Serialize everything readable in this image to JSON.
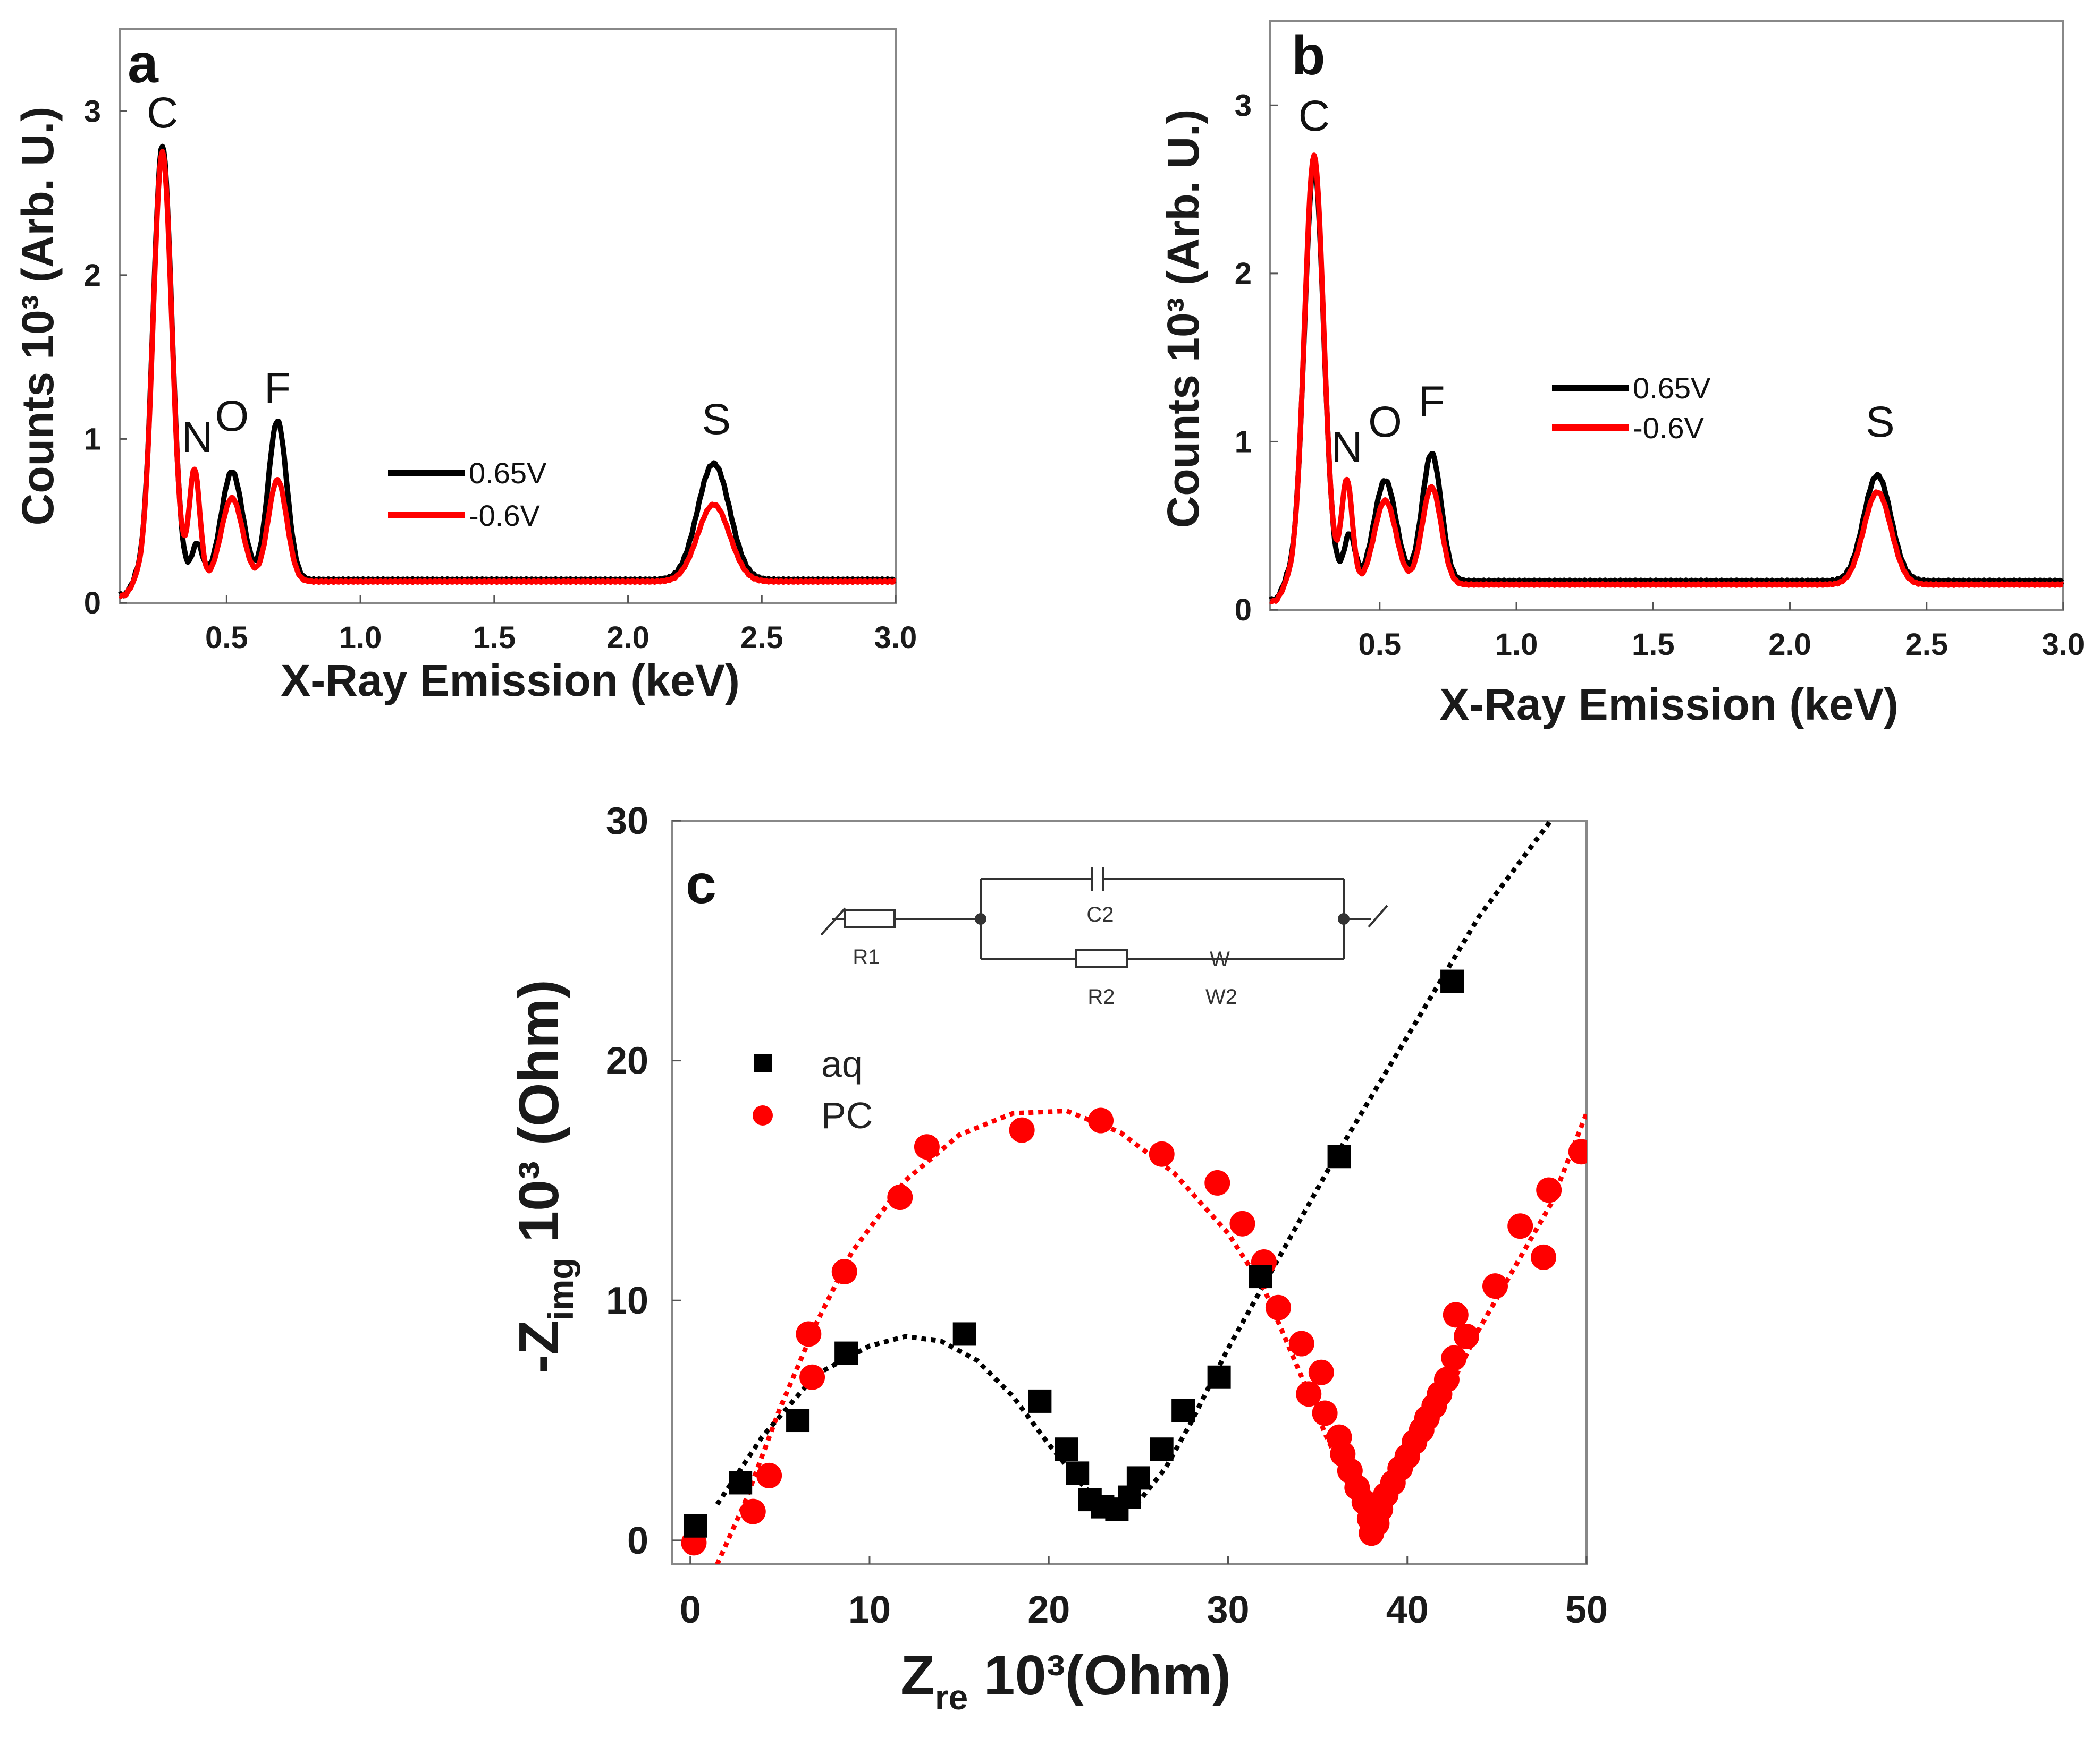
{
  "chart_data": [
    {
      "panel": "a",
      "type": "line",
      "xlabel": "X-Ray Emission (keV)",
      "ylabel": "Counts 10³ (Arb. U.)",
      "xlim": [
        0.1,
        3.0
      ],
      "ylim": [
        0,
        3.5
      ],
      "xticks": [
        "0.5",
        "1.0",
        "1.5",
        "2.0",
        "2.5",
        "3.0"
      ],
      "yticks": [
        "0",
        "1",
        "2",
        "3"
      ],
      "peak_labels": [
        {
          "text": "C",
          "x": 0.26,
          "y": 2.9
        },
        {
          "text": "N",
          "x": 0.39,
          "y": 0.92
        },
        {
          "text": "O",
          "x": 0.52,
          "y": 1.05
        },
        {
          "text": "F",
          "x": 0.69,
          "y": 1.22
        },
        {
          "text": "S",
          "x": 2.33,
          "y": 1.03
        }
      ],
      "legend_position": "center",
      "series": [
        {
          "name": "0.65V",
          "color": "#000000",
          "baseline": 0.14,
          "peaks": [
            [
              0.26,
              2.65,
              0.035
            ],
            [
              0.39,
              0.22,
              0.02
            ],
            [
              0.52,
              0.66,
              0.04
            ],
            [
              0.69,
              0.97,
              0.035
            ],
            [
              2.32,
              0.71,
              0.06
            ]
          ]
        },
        {
          "name": "-0.6V",
          "color": "#ff0000",
          "baseline": 0.13,
          "peaks": [
            [
              0.26,
              2.62,
              0.035
            ],
            [
              0.38,
              0.68,
              0.02
            ],
            [
              0.52,
              0.51,
              0.04
            ],
            [
              0.69,
              0.62,
              0.035
            ],
            [
              2.32,
              0.47,
              0.06
            ]
          ]
        }
      ]
    },
    {
      "panel": "b",
      "type": "line",
      "xlabel": "X-Ray Emission (keV)",
      "ylabel": "Counts 10³ (Arb. U.)",
      "xlim": [
        0.1,
        3.0
      ],
      "ylim": [
        0,
        3.5
      ],
      "xticks": [
        "0.5",
        "1.0",
        "1.5",
        "2.0",
        "2.5",
        "3.0"
      ],
      "yticks": [
        "0",
        "1",
        "2",
        "3"
      ],
      "peak_labels": [
        {
          "text": "C",
          "x": 0.26,
          "y": 2.85
        },
        {
          "text": "N",
          "x": 0.38,
          "y": 0.88
        },
        {
          "text": "O",
          "x": 0.52,
          "y": 1.03
        },
        {
          "text": "F",
          "x": 0.69,
          "y": 1.15
        },
        {
          "text": "S",
          "x": 2.33,
          "y": 1.03
        }
      ],
      "legend_position": "center",
      "series": [
        {
          "name": "0.65V",
          "color": "#000000",
          "baseline": 0.17,
          "peaks": [
            [
              0.26,
              2.48,
              0.035
            ],
            [
              0.39,
              0.28,
              0.02
            ],
            [
              0.52,
              0.6,
              0.04
            ],
            [
              0.69,
              0.76,
              0.035
            ],
            [
              2.32,
              0.63,
              0.05
            ]
          ]
        },
        {
          "name": "-0.6V",
          "color": "#ff0000",
          "baseline": 0.15,
          "peaks": [
            [
              0.26,
              2.55,
              0.035
            ],
            [
              0.38,
              0.62,
              0.02
            ],
            [
              0.52,
              0.5,
              0.04
            ],
            [
              0.69,
              0.58,
              0.035
            ],
            [
              2.32,
              0.55,
              0.05
            ]
          ]
        }
      ]
    },
    {
      "panel": "c",
      "type": "scatter",
      "xlabel_main": "Z",
      "xlabel_sub": "re",
      "xlabel_rest": " 10³(Ohm)",
      "ylabel_main": "-Z",
      "ylabel_sub": "img",
      "ylabel_rest": " 10³ (Ohm)",
      "xlim": [
        -1,
        50
      ],
      "ylim": [
        -1,
        30
      ],
      "xticks": [
        "0",
        "10",
        "20",
        "30",
        "40",
        "50"
      ],
      "yticks": [
        "0",
        "10",
        "20",
        "30"
      ],
      "legend_position": "top-left",
      "circuit_labels": [
        "R1",
        "C2",
        "R2",
        "W2",
        "W"
      ],
      "series": [
        {
          "name": "aq",
          "color": "#000000",
          "marker": "square",
          "points": [
            [
              0.3,
              0.6
            ],
            [
              2.8,
              2.4
            ],
            [
              6.0,
              5.0
            ],
            [
              8.7,
              7.8
            ],
            [
              15.3,
              8.6
            ],
            [
              19.5,
              5.8
            ],
            [
              21.0,
              3.8
            ],
            [
              21.6,
              2.8
            ],
            [
              22.3,
              1.7
            ],
            [
              23.0,
              1.4
            ],
            [
              23.8,
              1.3
            ],
            [
              24.5,
              1.8
            ],
            [
              25.0,
              2.6
            ],
            [
              26.3,
              3.8
            ],
            [
              27.5,
              5.4
            ],
            [
              29.5,
              6.8
            ],
            [
              31.8,
              11.0
            ],
            [
              36.2,
              16.0
            ],
            [
              42.5,
              23.3
            ]
          ],
          "fit": [
            [
              1.5,
              1.5
            ],
            [
              4,
              4.3
            ],
            [
              7,
              6.9
            ],
            [
              10,
              8.1
            ],
            [
              12,
              8.5
            ],
            [
              14,
              8.3
            ],
            [
              16,
              7.5
            ],
            [
              18,
              6.0
            ],
            [
              20,
              4.0
            ],
            [
              22,
              2.2
            ],
            [
              23.5,
              1.3
            ],
            [
              25,
              1.6
            ],
            [
              26.5,
              3.0
            ],
            [
              28,
              5.0
            ],
            [
              30,
              8.0
            ],
            [
              33,
              12.0
            ],
            [
              36,
              16.0
            ],
            [
              40,
              21.0
            ],
            [
              44,
              26.0
            ],
            [
              49,
              31.0
            ]
          ]
        },
        {
          "name": "PC",
          "color": "#ff0000",
          "marker": "circle",
          "points": [
            [
              0.2,
              -0.1
            ],
            [
              3.5,
              1.2
            ],
            [
              4.4,
              2.7
            ],
            [
              6.8,
              6.8
            ],
            [
              6.6,
              8.6
            ],
            [
              8.6,
              11.2
            ],
            [
              11.7,
              14.3
            ],
            [
              13.2,
              16.4
            ],
            [
              18.5,
              17.1
            ],
            [
              22.9,
              17.5
            ],
            [
              26.3,
              16.1
            ],
            [
              29.4,
              14.9
            ],
            [
              30.8,
              13.2
            ],
            [
              32.0,
              11.6
            ],
            [
              32.8,
              9.7
            ],
            [
              34.1,
              8.2
            ],
            [
              34.5,
              6.1
            ],
            [
              35.2,
              7.0
            ],
            [
              35.4,
              5.3
            ],
            [
              36.2,
              4.3
            ],
            [
              36.4,
              3.6
            ],
            [
              36.8,
              2.9
            ],
            [
              37.2,
              2.2
            ],
            [
              37.6,
              1.6
            ],
            [
              37.9,
              0.9
            ],
            [
              38.0,
              0.3
            ],
            [
              38.3,
              0.7
            ],
            [
              38.5,
              1.3
            ],
            [
              38.8,
              1.9
            ],
            [
              39.2,
              2.4
            ],
            [
              39.6,
              3.0
            ],
            [
              40.0,
              3.5
            ],
            [
              40.4,
              4.1
            ],
            [
              40.8,
              4.6
            ],
            [
              41.1,
              5.1
            ],
            [
              41.5,
              5.6
            ],
            [
              41.8,
              6.1
            ],
            [
              42.2,
              6.7
            ],
            [
              42.6,
              7.6
            ],
            [
              42.7,
              9.4
            ],
            [
              43.3,
              8.5
            ],
            [
              44.9,
              10.6
            ],
            [
              46.3,
              13.1
            ],
            [
              47.6,
              11.8
            ],
            [
              47.9,
              14.6
            ],
            [
              49.7,
              16.2
            ]
          ],
          "fit": [
            [
              1.5,
              -1
            ],
            [
              3,
              1.5
            ],
            [
              5,
              5.5
            ],
            [
              7,
              9.0
            ],
            [
              9,
              12.0
            ],
            [
              12,
              15.0
            ],
            [
              15,
              16.9
            ],
            [
              18,
              17.8
            ],
            [
              21,
              17.9
            ],
            [
              24,
              17.0
            ],
            [
              27,
              15.3
            ],
            [
              30,
              12.8
            ],
            [
              32,
              10.5
            ],
            [
              34,
              7.0
            ],
            [
              35.5,
              4.3
            ],
            [
              37,
              2.0
            ],
            [
              38.2,
              0.8
            ],
            [
              39,
              1.6
            ],
            [
              40.5,
              3.5
            ],
            [
              42,
              5.8
            ],
            [
              44,
              8.8
            ],
            [
              46,
              11.4
            ],
            [
              48,
              14.0
            ],
            [
              50,
              17.8
            ]
          ]
        }
      ]
    }
  ]
}
